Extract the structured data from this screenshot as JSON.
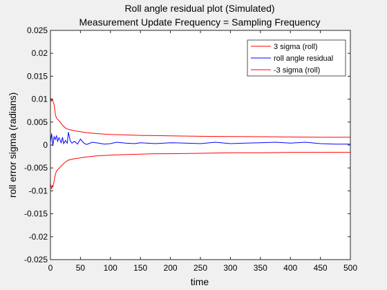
{
  "chart_data": {
    "type": "line",
    "title": [
      "Roll angle residual plot (Simulated)",
      "Measurement Update Frequency = Sampling Frequency"
    ],
    "xlabel": "time",
    "ylabel": "roll error sigma (radians)",
    "xlim": [
      0,
      500
    ],
    "ylim": [
      -0.025,
      0.025
    ],
    "xticks": [
      0,
      50,
      100,
      150,
      200,
      250,
      300,
      350,
      400,
      450,
      500
    ],
    "xtick_labels": [
      "0",
      "50",
      "100",
      "150",
      "200",
      "250",
      "300",
      "350",
      "400",
      "450",
      "500"
    ],
    "yticks": [
      0.025,
      0.02,
      0.015,
      0.01,
      0.005,
      0,
      -0.005,
      -0.01,
      -0.015,
      -0.02,
      -0.025
    ],
    "ytick_labels": [
      "0.025",
      "0.02",
      "0.015",
      "0.01",
      "0.005",
      "0",
      "-0.005",
      "-0.01",
      "-0.015",
      "-0.02",
      "-0.025"
    ],
    "grid": false,
    "legend_position": "top-right",
    "series": [
      {
        "name": "3 sigma (roll)",
        "color": "#ff0000",
        "x": [
          0,
          1,
          2,
          3,
          4,
          5,
          6,
          7,
          8,
          9,
          10,
          12,
          15,
          20,
          25,
          30,
          40,
          50,
          60,
          75,
          100,
          125,
          150,
          175,
          200,
          250,
          300,
          350,
          400,
          450,
          500
        ],
        "y": [
          0.0095,
          0.01,
          0.0096,
          0.0099,
          0.0097,
          0.0093,
          0.0088,
          0.0079,
          0.0069,
          0.0063,
          0.0059,
          0.0056,
          0.0052,
          0.0043,
          0.0037,
          0.0034,
          0.0031,
          0.0029,
          0.0027,
          0.0025,
          0.0023,
          0.0022,
          0.0021,
          0.00205,
          0.002,
          0.0019,
          0.00185,
          0.0018,
          0.00175,
          0.0017,
          0.0017
        ]
      },
      {
        "name": "roll angle residual",
        "color": "#0000ff",
        "x": [
          0,
          2,
          4,
          6,
          8,
          10,
          12,
          14,
          16,
          18,
          20,
          22,
          25,
          28,
          30,
          33,
          36,
          40,
          45,
          50,
          55,
          60,
          70,
          80,
          90,
          100,
          110,
          125,
          140,
          150,
          175,
          200,
          225,
          250,
          275,
          300,
          325,
          350,
          375,
          400,
          425,
          450,
          475,
          500
        ],
        "y": [
          0.0005,
          0.0025,
          -0.0002,
          0.0018,
          0.0012,
          0.002,
          0.0008,
          0.0016,
          0.0011,
          0.0005,
          0.0017,
          0.0003,
          0.001,
          0.0004,
          0.0028,
          0.0009,
          0.0004,
          0.0008,
          0.0002,
          0.0013,
          0.0005,
          0.0001,
          0.0006,
          0.0004,
          0.0002,
          0.0003,
          0.0006,
          0.0004,
          0.0003,
          0.0005,
          0.0003,
          0.0005,
          0.0004,
          0.0003,
          0.0006,
          0.0003,
          0.0004,
          0.0005,
          0.0006,
          0.0004,
          0.0006,
          0.0003,
          0.0002,
          0.0002
        ]
      },
      {
        "name": "-3 sigma (roll)",
        "color": "#ff0000",
        "x": [
          0,
          1,
          2,
          3,
          4,
          5,
          6,
          7,
          8,
          9,
          10,
          12,
          15,
          20,
          25,
          30,
          40,
          50,
          60,
          75,
          100,
          125,
          150,
          175,
          200,
          250,
          300,
          350,
          400,
          450,
          500
        ],
        "y": [
          -0.0085,
          -0.009,
          -0.0096,
          -0.0088,
          -0.0092,
          -0.0085,
          -0.008,
          -0.0072,
          -0.0066,
          -0.0061,
          -0.0057,
          -0.0054,
          -0.005,
          -0.0043,
          -0.0037,
          -0.0033,
          -0.003,
          -0.0028,
          -0.0026,
          -0.0024,
          -0.0022,
          -0.0021,
          -0.002,
          -0.0019,
          -0.0019,
          -0.0018,
          -0.0017,
          -0.0017,
          -0.0016,
          -0.0016,
          -0.0016
        ]
      }
    ]
  }
}
